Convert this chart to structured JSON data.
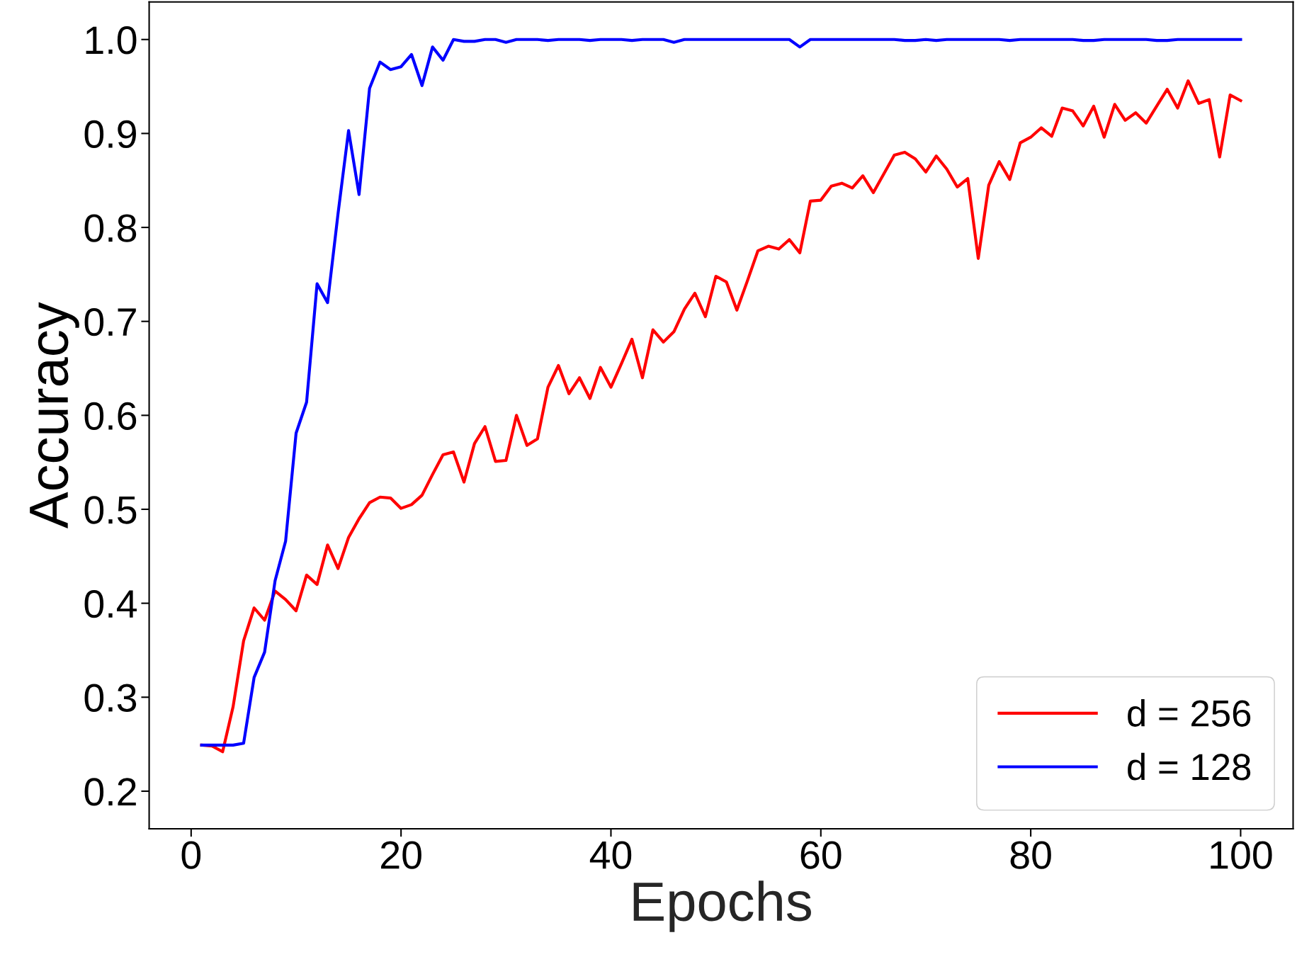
{
  "chart_data": {
    "type": "line",
    "xlabel": "Epochs",
    "ylabel": "Accuracy",
    "x": [
      1,
      2,
      3,
      4,
      5,
      6,
      7,
      8,
      9,
      10,
      11,
      12,
      13,
      14,
      15,
      16,
      17,
      18,
      19,
      20,
      21,
      22,
      23,
      24,
      25,
      26,
      27,
      28,
      29,
      30,
      31,
      32,
      33,
      34,
      35,
      36,
      37,
      38,
      39,
      40,
      41,
      42,
      43,
      44,
      45,
      46,
      47,
      48,
      49,
      50,
      51,
      52,
      53,
      54,
      55,
      56,
      57,
      58,
      59,
      60,
      61,
      62,
      63,
      64,
      65,
      66,
      67,
      68,
      69,
      70,
      71,
      72,
      73,
      74,
      75,
      76,
      77,
      78,
      79,
      80,
      81,
      82,
      83,
      84,
      85,
      86,
      87,
      88,
      89,
      90,
      91,
      92,
      93,
      94,
      95,
      96,
      97,
      98,
      99,
      100
    ],
    "series": [
      {
        "name": "d = 256",
        "color": "#ff0000",
        "values": [
          0.249,
          0.248,
          0.242,
          0.29,
          0.36,
          0.395,
          0.382,
          0.413,
          0.404,
          0.392,
          0.43,
          0.42,
          0.462,
          0.437,
          0.47,
          0.49,
          0.507,
          0.513,
          0.512,
          0.501,
          0.505,
          0.515,
          0.537,
          0.558,
          0.561,
          0.529,
          0.57,
          0.588,
          0.551,
          0.552,
          0.6,
          0.568,
          0.575,
          0.63,
          0.653,
          0.623,
          0.64,
          0.618,
          0.651,
          0.63,
          0.655,
          0.681,
          0.64,
          0.691,
          0.678,
          0.689,
          0.713,
          0.73,
          0.705,
          0.748,
          0.742,
          0.712,
          0.743,
          0.775,
          0.78,
          0.777,
          0.787,
          0.773,
          0.828,
          0.829,
          0.844,
          0.847,
          0.842,
          0.855,
          0.837,
          0.857,
          0.877,
          0.88,
          0.873,
          0.859,
          0.876,
          0.862,
          0.843,
          0.852,
          0.767,
          0.845,
          0.87,
          0.851,
          0.89,
          0.896,
          0.906,
          0.897,
          0.927,
          0.924,
          0.908,
          0.929,
          0.896,
          0.931,
          0.914,
          0.922,
          0.911,
          0.929,
          0.947,
          0.927,
          0.956,
          0.932,
          0.936,
          0.875,
          0.941,
          0.935
        ]
      },
      {
        "name": "d = 128",
        "color": "#0000ff",
        "values": [
          0.249,
          0.249,
          0.249,
          0.249,
          0.251,
          0.321,
          0.348,
          0.424,
          0.466,
          0.581,
          0.614,
          0.74,
          0.72,
          0.815,
          0.903,
          0.835,
          0.948,
          0.976,
          0.968,
          0.971,
          0.984,
          0.951,
          0.992,
          0.978,
          1.0,
          0.998,
          0.998,
          1.0,
          1.0,
          0.997,
          1.0,
          1.0,
          1.0,
          0.999,
          1.0,
          1.0,
          1.0,
          0.999,
          1.0,
          1.0,
          1.0,
          0.999,
          1.0,
          1.0,
          1.0,
          0.997,
          1.0,
          1.0,
          1.0,
          1.0,
          1.0,
          1.0,
          1.0,
          1.0,
          1.0,
          1.0,
          1.0,
          0.992,
          1.0,
          1.0,
          1.0,
          1.0,
          1.0,
          1.0,
          1.0,
          1.0,
          1.0,
          0.999,
          0.999,
          1.0,
          0.999,
          1.0,
          1.0,
          1.0,
          1.0,
          1.0,
          1.0,
          0.999,
          1.0,
          1.0,
          1.0,
          1.0,
          1.0,
          1.0,
          0.999,
          0.999,
          1.0,
          1.0,
          1.0,
          1.0,
          1.0,
          0.999,
          0.999,
          1.0,
          1.0,
          1.0,
          1.0,
          1.0,
          1.0,
          1.0
        ]
      }
    ],
    "xlim": [
      -4,
      105
    ],
    "xticks": [
      0,
      20,
      40,
      60,
      80,
      100
    ],
    "ylim": [
      0.16,
      1.04
    ],
    "yticks": [
      0.2,
      0.3,
      0.4,
      0.5,
      0.6,
      0.7,
      0.8,
      0.9,
      {
        "value": 1,
        "label": "1.0"
      }
    ],
    "legend": "lower right",
    "grid": false,
    "marker": "none",
    "line_style": "solid"
  }
}
